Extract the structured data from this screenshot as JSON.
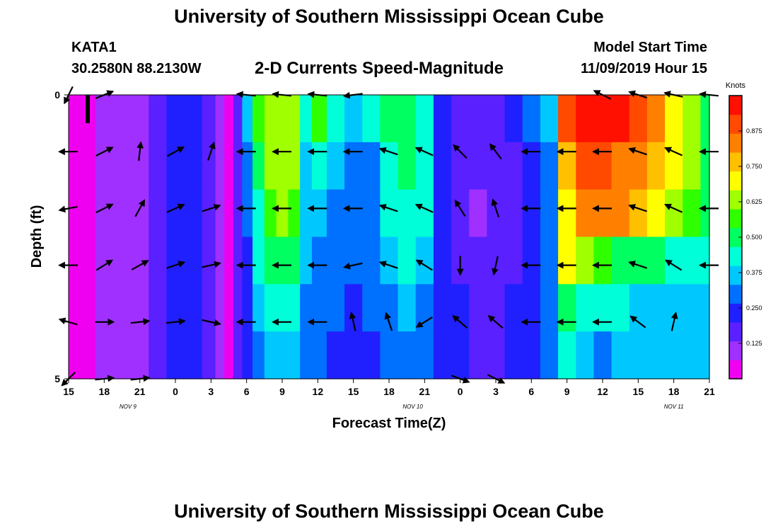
{
  "header": {
    "title": "University of Southern Mississippi Ocean Cube",
    "station_id": "KATA1",
    "station_coords": "30.2580N 88.2130W",
    "subtitle": "2-D Currents Speed-Magnitude",
    "model_start_label": "Model Start Time",
    "model_start_value": "11/09/2019 Hour 15"
  },
  "footer": {
    "title": "University of Southern Mississippi Ocean Cube"
  },
  "chart_data": {
    "type": "heatmap",
    "title": "2-D Currents Speed-Magnitude",
    "xlabel": "Forecast Time(Z)",
    "ylabel": "Depth (ft)",
    "x_ticks": [
      "15",
      "18",
      "21",
      "0",
      "3",
      "6",
      "9",
      "12",
      "15",
      "18",
      "21",
      "0",
      "3",
      "6",
      "9",
      "12",
      "15",
      "18",
      "21"
    ],
    "date_labels": [
      {
        "text": "NOV 9",
        "hour": 5
      },
      {
        "text": "NOV 10",
        "hour": 29
      },
      {
        "text": "NOV 11",
        "hour": 51
      }
    ],
    "y_ticks": [
      {
        "value": 0,
        "label": "0"
      },
      {
        "value": 5,
        "label": "5"
      }
    ],
    "xlim": [
      0,
      54
    ],
    "ylim": [
      0,
      5
    ],
    "colorbar": {
      "label": "Knots",
      "range": [
        0,
        1.0
      ],
      "ticks": [
        "0.125",
        "0.250",
        "0.375",
        "0.500",
        "0.625",
        "0.750",
        "0.875"
      ],
      "tick_values": [
        0.125,
        0.25,
        0.375,
        0.5,
        0.625,
        0.75,
        0.875
      ],
      "colors": [
        "#f000f0",
        "#a030ff",
        "#5a20ff",
        "#2020ff",
        "#0070ff",
        "#00c8ff",
        "#00ffd8",
        "#00ff60",
        "#30ff00",
        "#a0ff00",
        "#ffff00",
        "#ffc000",
        "#ff8000",
        "#ff4a00",
        "#ff1000"
      ]
    },
    "depth_rows": [
      0,
      1,
      2,
      3,
      4,
      5
    ],
    "speed_columns": {
      "hours": [
        0,
        1.5,
        3,
        4.5,
        6,
        7.5,
        9,
        10.5,
        12,
        12.75,
        13.5,
        14.25,
        15,
        16,
        17,
        18,
        19,
        20,
        21,
        22.5,
        24,
        25.5,
        27,
        28.5,
        30,
        31.5,
        33,
        34.5,
        36,
        37.5,
        39,
        40.5,
        42,
        43.5,
        45,
        46.5,
        48,
        49.5,
        51,
        52.5,
        54
      ],
      "rows": [
        [
          0.02,
          0.05,
          0.07,
          0.1,
          0.12,
          0.15,
          0.2,
          0.24,
          0.16,
          0.08,
          0.05,
          0.15,
          0.35,
          0.58,
          0.64,
          0.66,
          0.64,
          0.4,
          0.55,
          0.45,
          0.35,
          0.4,
          0.48,
          0.52,
          0.45,
          0.25,
          0.18,
          0.15,
          0.16,
          0.2,
          0.3,
          0.35,
          0.88,
          0.95,
          0.97,
          0.95,
          0.9,
          0.82,
          0.72,
          0.6,
          0.5
        ],
        [
          0.03,
          0.05,
          0.07,
          0.1,
          0.12,
          0.15,
          0.2,
          0.24,
          0.16,
          0.08,
          0.05,
          0.15,
          0.3,
          0.48,
          0.62,
          0.64,
          0.62,
          0.38,
          0.4,
          0.36,
          0.3,
          0.32,
          0.45,
          0.5,
          0.42,
          0.25,
          0.16,
          0.14,
          0.15,
          0.18,
          0.25,
          0.3,
          0.78,
          0.88,
          0.9,
          0.86,
          0.82,
          0.76,
          0.7,
          0.6,
          0.5
        ],
        [
          0.03,
          0.05,
          0.07,
          0.1,
          0.12,
          0.15,
          0.2,
          0.24,
          0.16,
          0.08,
          0.05,
          0.15,
          0.28,
          0.45,
          0.58,
          0.6,
          0.58,
          0.36,
          0.35,
          0.32,
          0.28,
          0.3,
          0.42,
          0.46,
          0.4,
          0.24,
          0.15,
          0.13,
          0.14,
          0.17,
          0.22,
          0.28,
          0.72,
          0.8,
          0.84,
          0.82,
          0.78,
          0.72,
          0.66,
          0.58,
          0.48
        ],
        [
          0.03,
          0.05,
          0.07,
          0.1,
          0.12,
          0.15,
          0.2,
          0.24,
          0.16,
          0.08,
          0.05,
          0.15,
          0.26,
          0.4,
          0.5,
          0.52,
          0.5,
          0.34,
          0.32,
          0.3,
          0.27,
          0.28,
          0.36,
          0.4,
          0.36,
          0.24,
          0.17,
          0.15,
          0.16,
          0.18,
          0.22,
          0.27,
          0.68,
          0.62,
          0.55,
          0.52,
          0.5,
          0.48,
          0.46,
          0.44,
          0.42
        ],
        [
          0.03,
          0.05,
          0.07,
          0.1,
          0.12,
          0.15,
          0.2,
          0.24,
          0.16,
          0.08,
          0.05,
          0.15,
          0.24,
          0.35,
          0.4,
          0.42,
          0.4,
          0.32,
          0.3,
          0.28,
          0.26,
          0.27,
          0.32,
          0.35,
          0.32,
          0.24,
          0.2,
          0.18,
          0.19,
          0.22,
          0.26,
          0.28,
          0.5,
          0.46,
          0.42,
          0.4,
          0.38,
          0.38,
          0.37,
          0.36,
          0.36
        ],
        [
          0.03,
          0.05,
          0.07,
          0.1,
          0.12,
          0.15,
          0.2,
          0.24,
          0.16,
          0.08,
          0.05,
          0.14,
          0.22,
          0.3,
          0.34,
          0.36,
          0.34,
          0.3,
          0.28,
          0.26,
          0.25,
          0.26,
          0.28,
          0.3,
          0.29,
          0.24,
          0.2,
          0.18,
          0.19,
          0.22,
          0.24,
          0.27,
          0.4,
          0.36,
          0.3,
          0.34,
          0.37,
          0.37,
          0.36,
          0.36,
          0.36
        ]
      ]
    },
    "vectors": {
      "hours": [
        0,
        3,
        6,
        9,
        12,
        15,
        18,
        21,
        24,
        27,
        30,
        33,
        36,
        39,
        42,
        45,
        48,
        51,
        54
      ],
      "rows": [
        [
          [
            -0.4,
            -0.8
          ],
          [
            1.0,
            0.4
          ],
          [
            0,
            0
          ],
          [
            0,
            0
          ],
          [
            0,
            0
          ],
          [
            -1.0,
            0.1
          ],
          [
            -1.0,
            0.1
          ],
          [
            -1.0,
            0.1
          ],
          [
            -0.8,
            -0.1
          ],
          [
            0,
            0
          ],
          [
            0,
            0
          ],
          [
            0,
            0
          ],
          [
            0,
            0
          ],
          [
            0,
            0
          ],
          [
            0,
            0
          ],
          [
            -0.6,
            0.3
          ],
          [
            -0.9,
            0.3
          ],
          [
            -0.9,
            0.2
          ],
          [
            -1.0,
            0.1
          ]
        ],
        [
          [
            -1.0,
            0.0
          ],
          [
            0.8,
            0.4
          ],
          [
            0.1,
            0.9
          ],
          [
            0.9,
            0.5
          ],
          [
            0.3,
            0.9
          ],
          [
            -1.0,
            0.0
          ],
          [
            -1.0,
            0.0
          ],
          [
            -1.0,
            0.0
          ],
          [
            -1.0,
            0.0
          ],
          [
            -0.9,
            0.3
          ],
          [
            -0.9,
            0.4
          ],
          [
            -0.7,
            0.7
          ],
          [
            -0.6,
            0.8
          ],
          [
            -1.0,
            0.0
          ],
          [
            -1.0,
            0.0
          ],
          [
            -1.0,
            0.0
          ],
          [
            -0.9,
            0.3
          ],
          [
            -0.9,
            0.4
          ],
          [
            -1.0,
            0.0
          ]
        ],
        [
          [
            -1.0,
            -0.2
          ],
          [
            0.8,
            0.4
          ],
          [
            0.5,
            0.9
          ],
          [
            0.9,
            0.4
          ],
          [
            0.9,
            0.3
          ],
          [
            -1.0,
            0.0
          ],
          [
            -1.0,
            0.0
          ],
          [
            -1.0,
            0.0
          ],
          [
            -1.0,
            0.0
          ],
          [
            -0.9,
            0.3
          ],
          [
            -0.9,
            0.4
          ],
          [
            -0.5,
            0.8
          ],
          [
            -0.3,
            0.9
          ],
          [
            -1.0,
            0.0
          ],
          [
            -1.0,
            0.0
          ],
          [
            -1.0,
            0.0
          ],
          [
            -0.9,
            0.3
          ],
          [
            -0.9,
            0.4
          ],
          [
            -1.0,
            0.0
          ]
        ],
        [
          [
            -1.0,
            0.0
          ],
          [
            0.8,
            0.5
          ],
          [
            0.9,
            0.5
          ],
          [
            0.9,
            0.3
          ],
          [
            0.9,
            0.2
          ],
          [
            -1.0,
            0.0
          ],
          [
            -1.0,
            0.0
          ],
          [
            -1.0,
            0.0
          ],
          [
            -0.9,
            -0.2
          ],
          [
            -0.9,
            0.3
          ],
          [
            -0.8,
            0.5
          ],
          [
            0.0,
            -0.9
          ],
          [
            -0.2,
            -0.9
          ],
          [
            -1.0,
            0.0
          ],
          [
            -1.0,
            0.0
          ],
          [
            -1.0,
            0.0
          ],
          [
            -0.9,
            0.3
          ],
          [
            -0.8,
            0.5
          ],
          [
            -1.0,
            0.0
          ]
        ],
        [
          [
            -1.0,
            0.3
          ],
          [
            0.9,
            0.0
          ],
          [
            0.9,
            0.1
          ],
          [
            0.9,
            0.1
          ],
          [
            0.9,
            -0.2
          ],
          [
            -1.0,
            0.0
          ],
          [
            -1.0,
            0.0
          ],
          [
            -1.0,
            0.0
          ],
          [
            -0.2,
            0.9
          ],
          [
            -0.3,
            0.9
          ],
          [
            -0.8,
            -0.5
          ],
          [
            -0.7,
            0.6
          ],
          [
            -0.7,
            0.6
          ],
          [
            -1.0,
            0.0
          ],
          [
            -1.0,
            0.0
          ],
          [
            -1.0,
            0.0
          ],
          [
            -0.8,
            0.6
          ],
          [
            0.2,
            0.9
          ],
          [
            0,
            0
          ]
        ],
        [
          [
            -0.4,
            -0.4
          ],
          [
            1.0,
            0.1
          ],
          [
            0.9,
            0.1
          ],
          [
            0,
            0
          ],
          [
            0,
            0
          ],
          [
            0,
            0
          ],
          [
            0,
            0
          ],
          [
            0,
            0
          ],
          [
            0,
            0
          ],
          [
            0,
            0
          ],
          [
            0,
            0
          ],
          [
            0.8,
            -0.3
          ],
          [
            0.8,
            -0.4
          ],
          [
            0,
            0
          ],
          [
            0,
            0
          ],
          [
            0,
            0
          ],
          [
            0,
            0
          ],
          [
            0,
            0
          ],
          [
            0,
            0
          ]
        ]
      ]
    }
  }
}
